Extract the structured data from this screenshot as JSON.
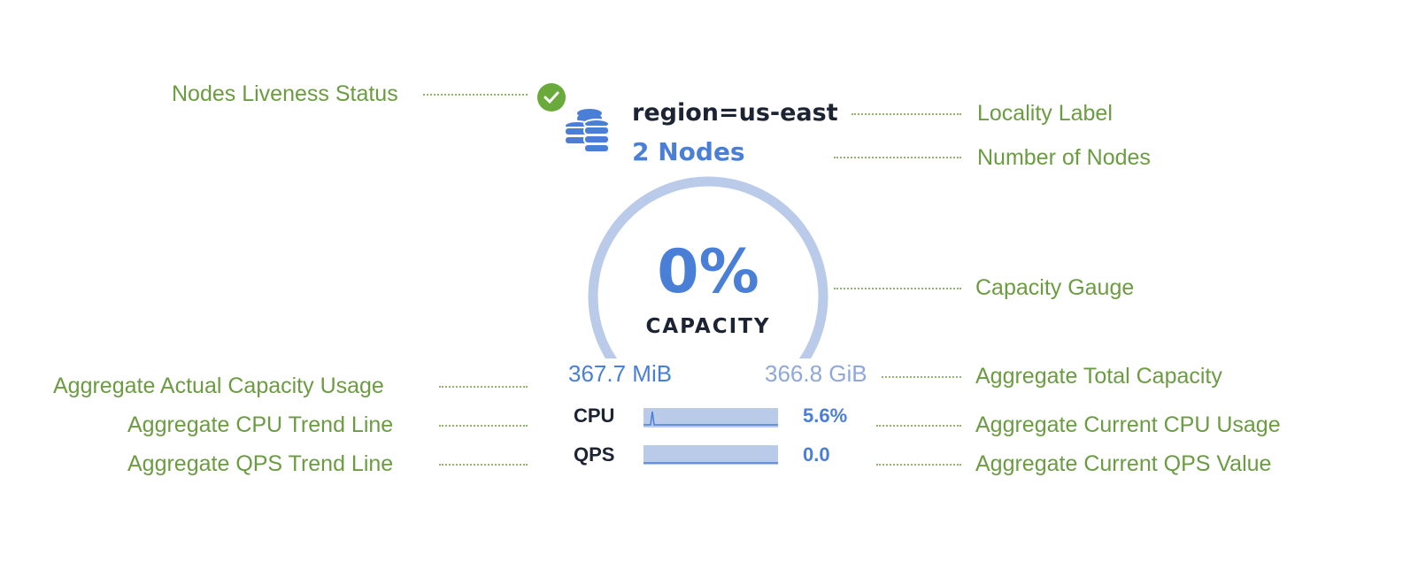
{
  "annotations": {
    "liveness": "Nodes Liveness Status",
    "locality": "Locality Label",
    "nodes": "Number of Nodes",
    "gauge": "Capacity Gauge",
    "usage": "Aggregate Actual Capacity Usage",
    "total": "Aggregate Total Capacity",
    "cpu_trend": "Aggregate CPU Trend Line",
    "cpu_current": "Aggregate Current CPU Usage",
    "qps_trend": "Aggregate QPS Trend Line",
    "qps_current": "Aggregate Current QPS Value"
  },
  "card": {
    "liveness_status": "live",
    "locality": "region=us-east",
    "node_count": "2 Nodes",
    "capacity_percent": "0%",
    "capacity_fraction": 0,
    "capacity_label": "CAPACITY",
    "used": "367.7 MiB",
    "total": "366.8 GiB",
    "cpu_label": "CPU",
    "cpu_value": "5.6%",
    "qps_label": "QPS",
    "qps_value": "0.0"
  },
  "colors": {
    "annotation": "#6b9c42",
    "accent": "#4a7fd8",
    "gauge_track": "#b9cbe9",
    "live": "#6aaa3a"
  }
}
